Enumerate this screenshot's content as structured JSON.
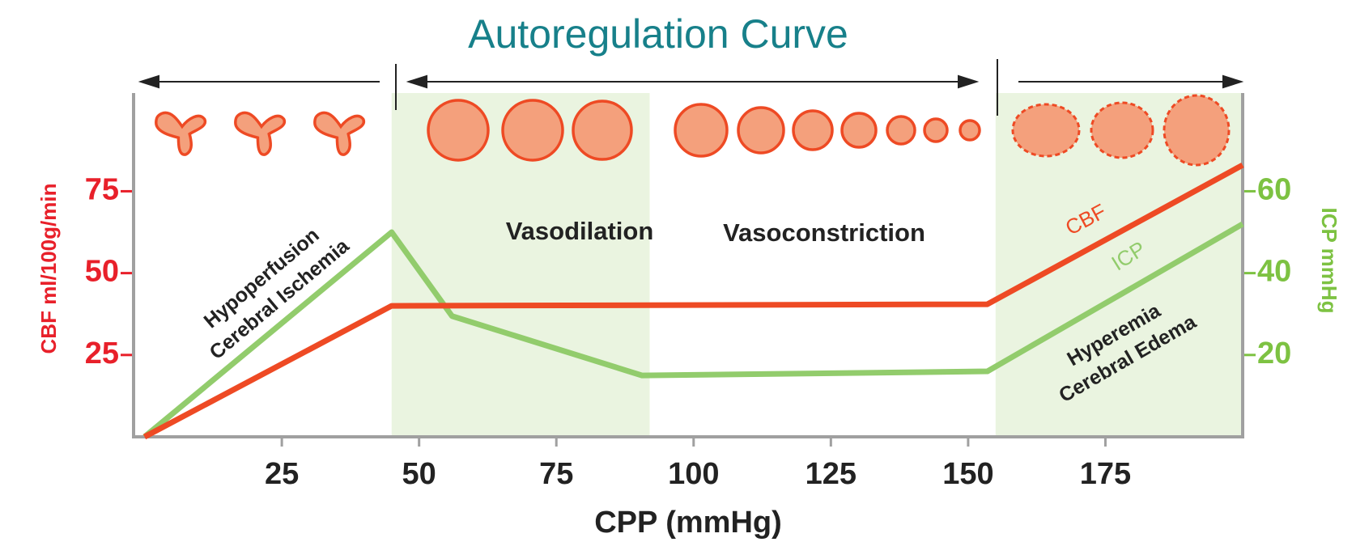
{
  "chart_data": {
    "type": "line",
    "title": "Autoregulation Curve",
    "xlabel": "CPP (mmHg)",
    "ylabel": "CBF ml/100g/min",
    "y2label": "ICP mmHg",
    "xlim": [
      -2,
      200
    ],
    "xticks": [
      25,
      50,
      75,
      100,
      125,
      150,
      175
    ],
    "ylim": [
      0,
      105
    ],
    "yticks": [
      25,
      50,
      75
    ],
    "y2lim": [
      0,
      84
    ],
    "y2ticks": [
      20,
      40,
      60
    ],
    "shaded_ranges": [
      [
        45,
        92
      ],
      [
        155,
        200
      ]
    ],
    "series": [
      {
        "name": "CBF",
        "color": "#ee4a24",
        "x": [
          0,
          45,
          153.5,
          200
        ],
        "values": [
          0,
          40,
          40.5,
          83
        ]
      },
      {
        "name": "ICP",
        "color": "#92cc6c",
        "axis": "y2",
        "x": [
          0,
          45,
          56,
          90.6,
          153.5,
          200
        ],
        "values": [
          0,
          50,
          29.5,
          15,
          16,
          52
        ]
      }
    ],
    "annotations": {
      "hypoperfusion": [
        "Hypoperfusion",
        "Cerebral Ischemia"
      ],
      "vasodilation": "Vasodilation",
      "vasoconstriction": "Vasoconstriction",
      "hyperemia": [
        "Hyperemia",
        "Cerebral Edema"
      ]
    }
  }
}
